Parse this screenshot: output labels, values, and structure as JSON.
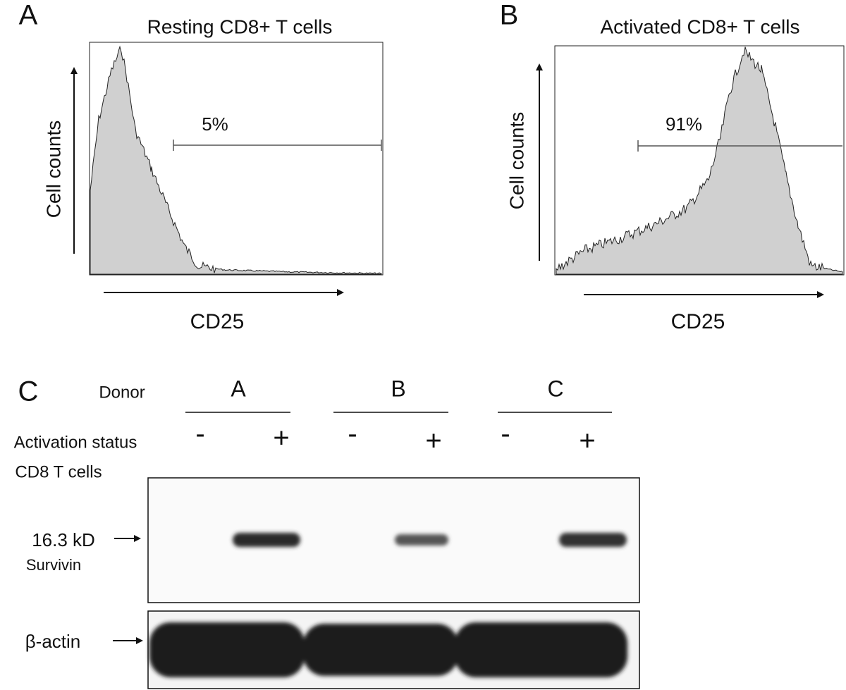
{
  "panels": [
    {
      "letter": "A",
      "title": "Resting CD8+ T cells",
      "y_label": "Cell counts",
      "x_label": "CD25",
      "gate_label": "5%"
    },
    {
      "letter": "B",
      "title": "Activated CD8+ T cells",
      "y_label": "Cell counts",
      "x_label": "CD25",
      "gate_label": "91%"
    }
  ],
  "blot": {
    "letter": "C",
    "donor_label": "Donor",
    "donors": [
      "A",
      "B",
      "C"
    ],
    "activation_label": "Activation status",
    "signs": [
      "-",
      "+",
      "-",
      "+",
      "-",
      "+"
    ],
    "cells_label": "CD8 T cells",
    "band_label": "16.3 kD",
    "protein_label": "Survivin",
    "control_label": "β-actin"
  }
}
